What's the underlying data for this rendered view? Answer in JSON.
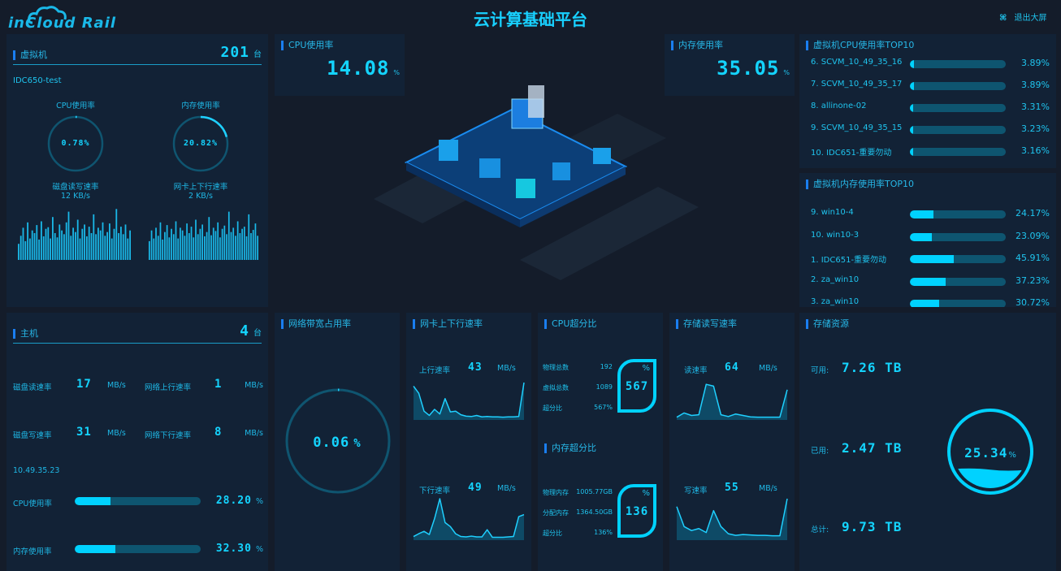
{
  "header": {
    "logo": "inCloud Rail",
    "title": "云计算基础平台",
    "exit_label": "退出大屏",
    "exit_icon": "exit-fullscreen-icon"
  },
  "colors": {
    "accent": "#00d2ff",
    "panel": "#122236",
    "background": "#141c2a",
    "track": "#0e5570"
  },
  "vm": {
    "title": "虚拟机",
    "count": "201",
    "unit": "台",
    "name": "IDC650-test",
    "cpu_label": "CPU使用率",
    "cpu_value": "0.78%",
    "cpu_pct": 0.78,
    "mem_label": "内存使用率",
    "mem_value": "20.82%",
    "mem_pct": 20.82,
    "disk_label": "磁盘读写速率",
    "disk_value": "12 KB/s",
    "nic_label": "网卡上下行速率",
    "nic_value": "2 KB/s",
    "disk_series": [
      30,
      45,
      60,
      35,
      70,
      40,
      55,
      50,
      65,
      38,
      72,
      44,
      58,
      61,
      40,
      80,
      50,
      42,
      66,
      55,
      48,
      70,
      90,
      45,
      60,
      52,
      75,
      40,
      58,
      66,
      44,
      62,
      50,
      85,
      48,
      60,
      55,
      70,
      45,
      52,
      68,
      40,
      58,
      95,
      50,
      62,
      48,
      66,
      40,
      55
    ],
    "nic_series": [
      35,
      55,
      40,
      60,
      45,
      70,
      38,
      52,
      65,
      42,
      58,
      48,
      72,
      40,
      60,
      55,
      45,
      68,
      50,
      62,
      42,
      75,
      48,
      58,
      66,
      44,
      52,
      80,
      46,
      60,
      54,
      70,
      42,
      58,
      64,
      48,
      90,
      52,
      60,
      45,
      72,
      50,
      58,
      62,
      44,
      85,
      50,
      56,
      68,
      45
    ]
  },
  "cpu_usage": {
    "title": "CPU使用率",
    "value": "14.08",
    "unit": "%"
  },
  "mem_usage": {
    "title": "内存使用率",
    "value": "35.05",
    "unit": "%"
  },
  "top_cpu": {
    "title": "虚拟机CPU使用率TOP10",
    "items": [
      {
        "label": "6. SCVM_10_49_35_16",
        "value": "3.89%",
        "pct": 3.89
      },
      {
        "label": "7. SCVM_10_49_35_17",
        "value": "3.89%",
        "pct": 3.89
      },
      {
        "label": "8. allinone-02",
        "value": "3.31%",
        "pct": 3.31
      },
      {
        "label": "9. SCVM_10_49_35_15",
        "value": "3.23%",
        "pct": 3.23
      },
      {
        "label": "10. IDC651-重要勿动",
        "value": "3.16%",
        "pct": 3.16
      }
    ]
  },
  "top_mem": {
    "title": "虚拟机内存使用率TOP10",
    "items": [
      {
        "label": "9. win10-4",
        "value": "24.17%",
        "pct": 24.17
      },
      {
        "label": "10. win10-3",
        "value": "23.09%",
        "pct": 23.09
      },
      {
        "label": "1. IDC651-重要勿动",
        "value": "45.91%",
        "pct": 45.91
      },
      {
        "label": "2. za_win10",
        "value": "37.23%",
        "pct": 37.23
      },
      {
        "label": "3. za_win10",
        "value": "30.72%",
        "pct": 30.72
      }
    ]
  },
  "host": {
    "title": "主机",
    "count": "4",
    "unit": "台",
    "disk_read_label": "磁盘读速率",
    "disk_read": "17",
    "net_up_label": "网络上行速率",
    "net_up": "1",
    "disk_write_label": "磁盘写速率",
    "disk_write": "31",
    "net_down_label": "网络下行速率",
    "net_down": "8",
    "rate_unit": "MB/s",
    "ip": "10.49.35.23",
    "cpu_label": "CPU使用率",
    "cpu_value": "28.20",
    "cpu_pct": 28.2,
    "mem_label": "内存使用率",
    "mem_value": "32.30",
    "mem_pct": 32.3,
    "pct_unit": "%"
  },
  "bandwidth": {
    "title": "网络带宽占用率",
    "value": "0.06",
    "unit": "%",
    "pct": 0.06
  },
  "nic": {
    "title": "网卡上下行速率",
    "up_label": "上行速率",
    "up_value": "43",
    "down_label": "下行速率",
    "down_value": "49",
    "unit": "MB/s",
    "up_series": [
      90,
      70,
      20,
      8,
      25,
      12,
      55,
      18,
      20,
      10,
      6,
      5,
      8,
      4,
      5,
      4,
      4,
      3,
      4,
      4,
      5,
      100
    ],
    "down_series": [
      5,
      12,
      18,
      10,
      50,
      100,
      40,
      30,
      12,
      5,
      4,
      6,
      4,
      4,
      22,
      3,
      3,
      3,
      4,
      5,
      55,
      60
    ]
  },
  "cpu_over": {
    "title": "CPU超分比",
    "rows": [
      {
        "label": "物理总数",
        "value": "192"
      },
      {
        "label": "虚拟总数",
        "value": "1089"
      },
      {
        "label": "超分比",
        "value": "567%"
      }
    ],
    "badge": "567",
    "badge_unit": "%"
  },
  "mem_over": {
    "title": "内存超分比",
    "rows": [
      {
        "label": "物理内存",
        "value": "1005.77GB"
      },
      {
        "label": "分配内存",
        "value": "1364.50GB"
      },
      {
        "label": "超分比",
        "value": "136%"
      }
    ],
    "badge": "136",
    "badge_unit": "%"
  },
  "storage_rate": {
    "title": "存储读写速率",
    "read_label": "读速率",
    "read_value": "64",
    "write_label": "写速率",
    "write_value": "55",
    "unit": "MB/s",
    "read_series": [
      3,
      15,
      8,
      10,
      95,
      90,
      10,
      5,
      12,
      8,
      4,
      3,
      3,
      3,
      3,
      80
    ],
    "write_series": [
      80,
      30,
      20,
      25,
      15,
      70,
      30,
      12,
      8,
      10,
      9,
      8,
      8,
      7,
      7,
      100
    ]
  },
  "storage": {
    "title": "存储资源",
    "avail_label": "可用:",
    "avail": "7.26 TB",
    "used_label": "已用:",
    "used": "2.47 TB",
    "total_label": "总计:",
    "total": "9.73 TB",
    "pct_value": "25.34",
    "pct_unit": "%",
    "pct": 25.34
  }
}
